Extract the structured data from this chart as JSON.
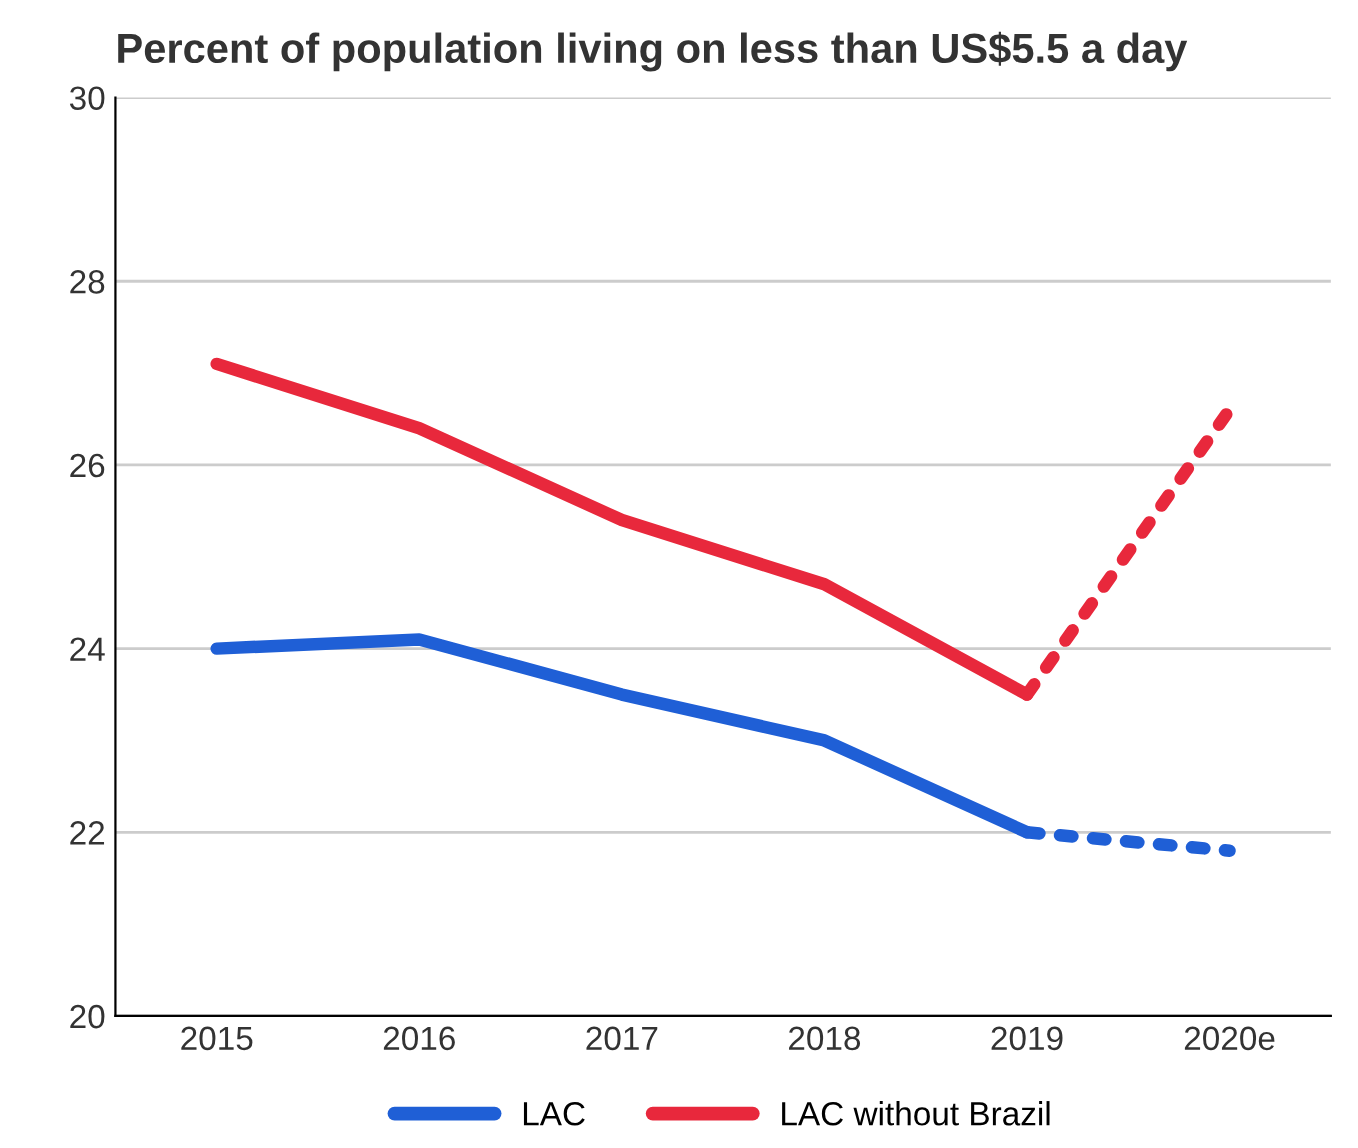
{
  "chart_data": {
    "type": "line",
    "title": "Percent of population living on less than US$5.5 a day",
    "categories": [
      "2015",
      "2016",
      "2017",
      "2018",
      "2019",
      "2020e"
    ],
    "series": [
      {
        "name": "LAC",
        "color": "#1f5fd6",
        "line_style": "solid",
        "values": [
          24.0,
          24.1,
          23.5,
          23.0,
          22.0,
          null
        ]
      },
      {
        "name": "LAC without Brazil",
        "color": "#e8283c",
        "line_style": "solid",
        "values": [
          27.1,
          26.4,
          25.4,
          24.7,
          23.5,
          null
        ]
      },
      {
        "color": "#1f5fd6",
        "line_style": "dotted",
        "values": [
          null,
          null,
          null,
          null,
          22.0,
          21.8
        ]
      },
      {
        "color": "#e8283c",
        "line_style": "dotted",
        "values": [
          null,
          null,
          null,
          null,
          23.5,
          26.6
        ]
      }
    ],
    "ylim": [
      20,
      30
    ],
    "yticks": [
      20,
      22,
      24,
      26,
      28,
      30
    ],
    "grid": "y",
    "legend": "bottom",
    "marker": "none"
  }
}
